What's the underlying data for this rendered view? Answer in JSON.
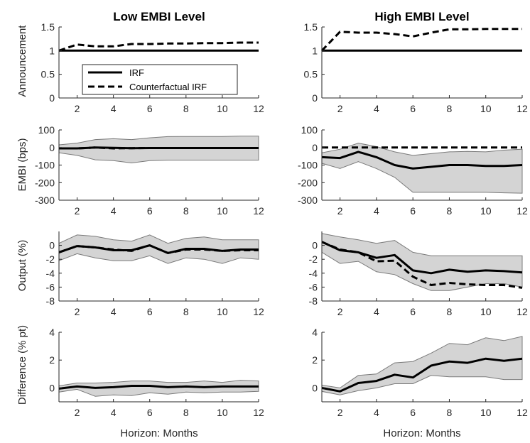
{
  "column_titles": [
    "Low EMBI Level",
    "High EMBI Level"
  ],
  "row_ylabels": [
    "Announcement",
    "EMBI (bps)",
    "Output (%)",
    "Difference (% pt)"
  ],
  "xlabel": "Horizon: Months",
  "legend": {
    "irf": "IRF",
    "counterfactual": "Counterfactual IRF"
  },
  "colors": {
    "line": "#000000",
    "band_fill": "#d4d4d4",
    "band_edge": "#7a7a7a",
    "axis": "#262626"
  },
  "chart_data": [
    {
      "type": "line",
      "name": "low-announcement",
      "row": 0,
      "col": 0,
      "ylabel": "Announcement",
      "ylim": [
        0,
        1.5
      ],
      "yticks": [
        0,
        0.5,
        1,
        1.5
      ],
      "xlim": [
        1,
        12
      ],
      "xticks": [
        2,
        4,
        6,
        8,
        10,
        12
      ],
      "x": [
        1,
        2,
        3,
        4,
        5,
        6,
        7,
        8,
        9,
        10,
        11,
        12
      ],
      "series": [
        {
          "name": "IRF",
          "style": "solid",
          "values": [
            1,
            1,
            1,
            1,
            1,
            1,
            1,
            1,
            1,
            1,
            1,
            1
          ]
        },
        {
          "name": "Counterfactual IRF",
          "style": "dashed",
          "values": [
            1,
            1.13,
            1.09,
            1.09,
            1.14,
            1.14,
            1.15,
            1.15,
            1.16,
            1.16,
            1.17,
            1.17
          ]
        }
      ],
      "legend_position": "inside-lower-left"
    },
    {
      "type": "line",
      "name": "high-announcement",
      "row": 0,
      "col": 1,
      "ylabel": "",
      "ylim": [
        0,
        1.5
      ],
      "yticks": [
        0,
        0.5,
        1,
        1.5
      ],
      "xlim": [
        1,
        12
      ],
      "xticks": [
        2,
        4,
        6,
        8,
        10,
        12
      ],
      "x": [
        1,
        2,
        3,
        4,
        5,
        6,
        7,
        8,
        9,
        10,
        11,
        12
      ],
      "series": [
        {
          "name": "IRF",
          "style": "solid",
          "values": [
            1,
            1,
            1,
            1,
            1,
            1,
            1,
            1,
            1,
            1,
            1,
            1
          ]
        },
        {
          "name": "Counterfactual IRF",
          "style": "dashed",
          "values": [
            1,
            1.4,
            1.38,
            1.38,
            1.35,
            1.3,
            1.38,
            1.45,
            1.45,
            1.46,
            1.46,
            1.46
          ]
        }
      ]
    },
    {
      "type": "area",
      "name": "low-embi",
      "row": 1,
      "col": 0,
      "ylabel": "EMBI (bps)",
      "ylim": [
        -300,
        100
      ],
      "yticks": [
        -300,
        -200,
        -100,
        0,
        100
      ],
      "xlim": [
        1,
        12
      ],
      "xticks": [
        2,
        4,
        6,
        8,
        10,
        12
      ],
      "x": [
        1,
        2,
        3,
        4,
        5,
        6,
        7,
        8,
        9,
        10,
        11,
        12
      ],
      "band": {
        "upper": [
          15,
          25,
          45,
          50,
          45,
          55,
          62,
          63,
          63,
          63,
          65,
          65
        ],
        "lower": [
          -30,
          -45,
          -70,
          -75,
          -88,
          -75,
          -72,
          -72,
          -72,
          -72,
          -72,
          -72
        ]
      },
      "series": [
        {
          "name": "IRF",
          "style": "solid",
          "values": [
            -5,
            -5,
            0,
            -2,
            -4,
            -3,
            -3,
            -3,
            -3,
            -3,
            -3,
            -3
          ]
        },
        {
          "name": "Counterfactual IRF",
          "style": "dashed",
          "values": [
            -5,
            -5,
            0,
            -5,
            -4,
            -3,
            -3,
            -3,
            -3,
            -3,
            -3,
            -3
          ]
        }
      ]
    },
    {
      "type": "area",
      "name": "high-embi",
      "row": 1,
      "col": 1,
      "ylabel": "",
      "ylim": [
        -300,
        100
      ],
      "yticks": [
        -300,
        -200,
        -100,
        0,
        100
      ],
      "xlim": [
        1,
        12
      ],
      "xticks": [
        2,
        4,
        6,
        8,
        10,
        12
      ],
      "x": [
        1,
        2,
        3,
        4,
        5,
        6,
        7,
        8,
        9,
        10,
        11,
        12
      ],
      "band": {
        "upper": [
          -30,
          -10,
          25,
          5,
          -25,
          -45,
          -35,
          -25,
          -22,
          -25,
          -15,
          -10
        ],
        "lower": [
          -90,
          -120,
          -80,
          -120,
          -170,
          -255,
          -255,
          -255,
          -255,
          -255,
          -258,
          -260
        ]
      },
      "series": [
        {
          "name": "IRF",
          "style": "solid",
          "values": [
            -55,
            -60,
            -25,
            -55,
            -100,
            -120,
            -110,
            -100,
            -100,
            -105,
            -105,
            -100
          ]
        },
        {
          "name": "Counterfactual IRF",
          "style": "dashed",
          "values": [
            0,
            0,
            0,
            0,
            0,
            0,
            0,
            0,
            0,
            0,
            0,
            0
          ]
        }
      ]
    },
    {
      "type": "area",
      "name": "low-output",
      "row": 2,
      "col": 0,
      "ylabel": "Output (%)",
      "ylim": [
        -8,
        2
      ],
      "yticks": [
        -8,
        -6,
        -4,
        -2,
        0
      ],
      "xlim": [
        1,
        12
      ],
      "xticks": [
        2,
        4,
        6,
        8,
        10,
        12
      ],
      "x": [
        1,
        2,
        3,
        4,
        5,
        6,
        7,
        8,
        9,
        10,
        11,
        12
      ],
      "band": {
        "upper": [
          0.3,
          1.5,
          1.3,
          0.8,
          0.6,
          1.5,
          0.3,
          1.0,
          1.2,
          0.8,
          0.8,
          0.8
        ],
        "lower": [
          -2.2,
          -1.2,
          -1.8,
          -2.2,
          -2.2,
          -1.5,
          -2.6,
          -1.8,
          -2.0,
          -2.6,
          -1.8,
          -2.0
        ]
      },
      "series": [
        {
          "name": "IRF",
          "style": "solid",
          "values": [
            -1.0,
            -0.1,
            -0.3,
            -0.7,
            -0.7,
            0.0,
            -1.1,
            -0.5,
            -0.5,
            -0.8,
            -0.6,
            -0.6
          ]
        },
        {
          "name": "Counterfactual IRF",
          "style": "dashed",
          "values": [
            -1.0,
            -0.1,
            -0.3,
            -0.6,
            -0.8,
            0.0,
            -1.1,
            -0.6,
            -0.6,
            -0.8,
            -0.7,
            -0.7
          ]
        }
      ]
    },
    {
      "type": "area",
      "name": "high-output",
      "row": 2,
      "col": 1,
      "ylabel": "",
      "ylim": [
        -8,
        2
      ],
      "yticks": [
        -8,
        -6,
        -4,
        -2,
        0
      ],
      "xlim": [
        1,
        12
      ],
      "xticks": [
        2,
        4,
        6,
        8,
        10,
        12
      ],
      "x": [
        1,
        2,
        3,
        4,
        5,
        6,
        7,
        8,
        9,
        10,
        11,
        12
      ],
      "band": {
        "upper": [
          1.7,
          1.2,
          0.8,
          0.3,
          0.7,
          -1.0,
          -1.5,
          -1.5,
          -1.5,
          -1.5,
          -1.5,
          -1.5
        ],
        "lower": [
          -1.0,
          -2.6,
          -2.3,
          -3.8,
          -4.2,
          -5.5,
          -6.5,
          -6.5,
          -6.0,
          -5.5,
          -5.5,
          -6.0
        ]
      },
      "series": [
        {
          "name": "IRF",
          "style": "solid",
          "values": [
            0.5,
            -0.7,
            -1.0,
            -1.8,
            -1.4,
            -3.6,
            -4.0,
            -3.5,
            -3.8,
            -3.6,
            -3.7,
            -3.9
          ]
        },
        {
          "name": "Counterfactual IRF",
          "style": "dashed",
          "values": [
            0.5,
            -0.6,
            -1.0,
            -2.3,
            -2.2,
            -4.5,
            -5.7,
            -5.4,
            -5.6,
            -5.7,
            -5.7,
            -6.1
          ]
        }
      ]
    },
    {
      "type": "area",
      "name": "low-difference",
      "row": 3,
      "col": 0,
      "ylabel": "Difference (% pt)",
      "ylim": [
        -1,
        4
      ],
      "yticks": [
        0,
        2,
        4
      ],
      "xlim": [
        1,
        12
      ],
      "xticks": [
        2,
        4,
        6,
        8,
        10,
        12
      ],
      "x": [
        1,
        2,
        3,
        4,
        5,
        6,
        7,
        8,
        9,
        10,
        11,
        12
      ],
      "band": {
        "upper": [
          0.15,
          0.35,
          0.35,
          0.4,
          0.5,
          0.5,
          0.4,
          0.4,
          0.5,
          0.4,
          0.55,
          0.5
        ],
        "lower": [
          -0.3,
          -0.1,
          -0.6,
          -0.5,
          -0.55,
          -0.35,
          -0.45,
          -0.3,
          -0.35,
          -0.3,
          -0.3,
          -0.25
        ]
      },
      "series": [
        {
          "name": "IRF",
          "style": "solid",
          "values": [
            -0.05,
            0.1,
            0.0,
            0.05,
            0.15,
            0.15,
            0.05,
            0.1,
            0.05,
            0.1,
            0.1,
            0.1
          ]
        }
      ]
    },
    {
      "type": "area",
      "name": "high-difference",
      "row": 3,
      "col": 1,
      "ylabel": "",
      "ylim": [
        -1,
        4
      ],
      "yticks": [
        0,
        2,
        4
      ],
      "xlim": [
        1,
        12
      ],
      "xticks": [
        2,
        4,
        6,
        8,
        10,
        12
      ],
      "x": [
        1,
        2,
        3,
        4,
        5,
        6,
        7,
        8,
        9,
        10,
        11,
        12
      ],
      "band": {
        "upper": [
          0.2,
          0.0,
          0.9,
          1.0,
          1.8,
          1.9,
          2.5,
          3.2,
          3.1,
          3.6,
          3.4,
          3.7
        ],
        "lower": [
          -0.25,
          -0.5,
          -0.2,
          0.0,
          0.3,
          0.3,
          0.9,
          0.8,
          0.8,
          0.8,
          0.6,
          0.6
        ]
      },
      "series": [
        {
          "name": "IRF",
          "style": "solid",
          "values": [
            0.0,
            -0.25,
            0.35,
            0.5,
            0.95,
            0.75,
            1.6,
            1.9,
            1.8,
            2.1,
            1.95,
            2.1
          ]
        }
      ]
    }
  ]
}
